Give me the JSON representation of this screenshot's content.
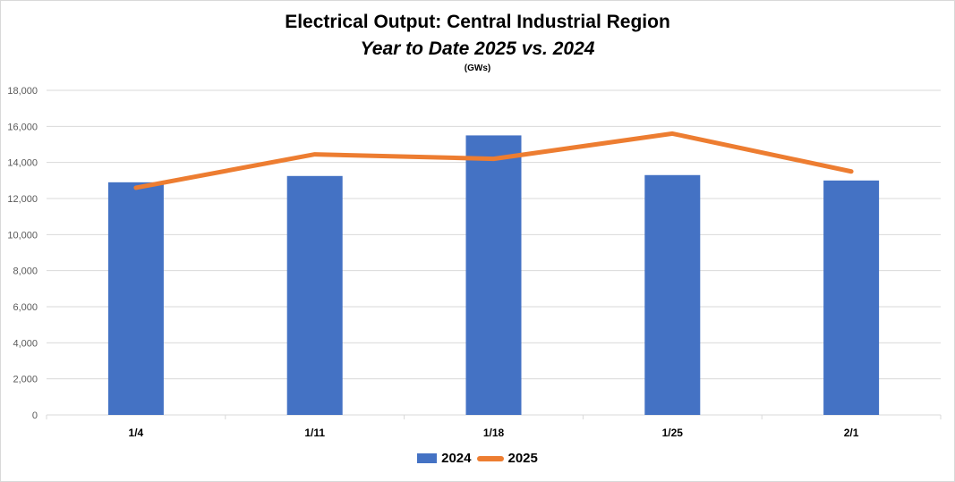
{
  "chart_data": {
    "type": "bar",
    "title": "Electrical Output:  Central Industrial Region",
    "subtitle": "Year to Date 2025 vs. 2024",
    "unit_label": "(GWs)",
    "categories": [
      "1/4",
      "1/11",
      "1/18",
      "1/25",
      "2/1"
    ],
    "series": [
      {
        "name": "2024",
        "type": "bar",
        "color": "#4472c4",
        "values": [
          12900,
          13250,
          15500,
          13300,
          13000
        ]
      },
      {
        "name": "2025",
        "type": "line",
        "color": "#ed7d31",
        "values": [
          12600,
          14450,
          14200,
          15600,
          13500
        ]
      }
    ],
    "ylim": [
      0,
      18000
    ],
    "yticks": [
      0,
      2000,
      4000,
      6000,
      8000,
      10000,
      12000,
      14000,
      16000,
      18000
    ],
    "ytick_labels": [
      "0",
      "2,000",
      "4,000",
      "6,000",
      "8,000",
      "10,000",
      "12,000",
      "14,000",
      "16,000",
      "18,000"
    ],
    "grid": true,
    "legend_position": "bottom"
  }
}
